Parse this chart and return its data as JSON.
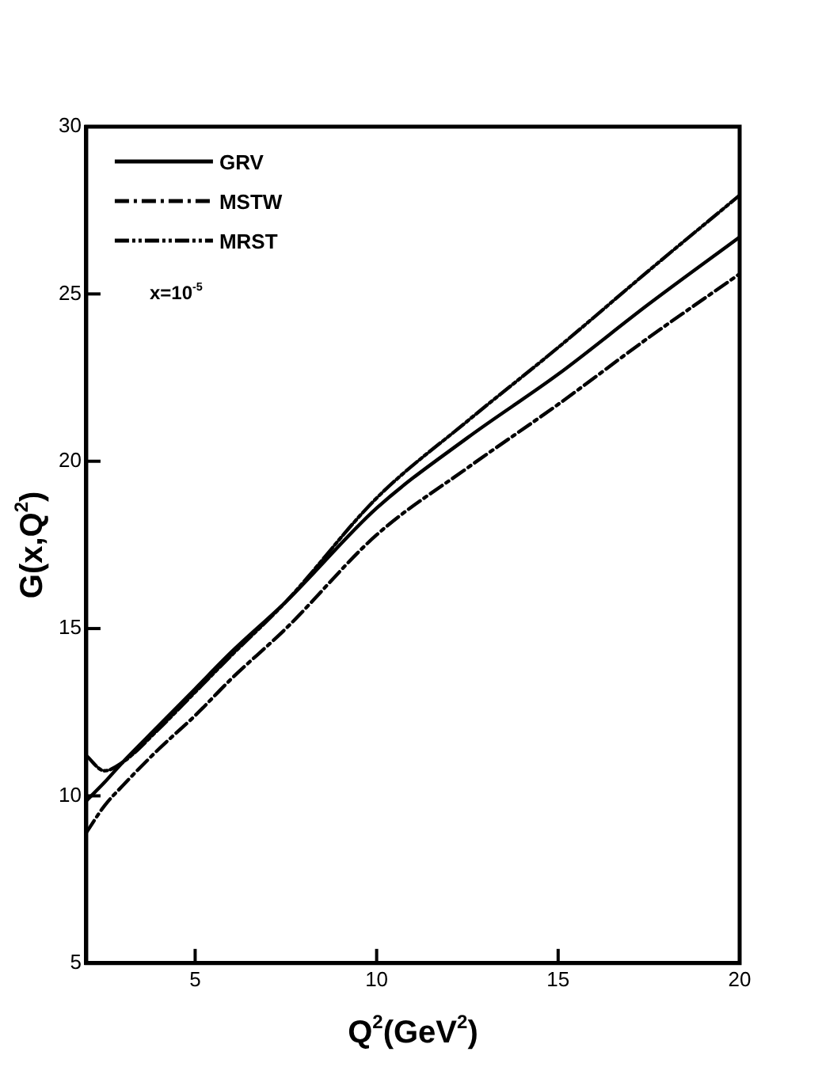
{
  "chart_data": {
    "type": "line",
    "xlabel": "Q$^{2}$(GeV$^{2}$)",
    "ylabel": "G(x,Q$^{2}$)",
    "annotations": [
      "x=10$^{-5}$"
    ],
    "xlim": [
      2,
      20
    ],
    "xticks": [
      5,
      10,
      15,
      20
    ],
    "ylim": [
      5,
      30
    ],
    "yticks": [
      5,
      10,
      15,
      20,
      25,
      30
    ],
    "grid": false,
    "legend": "top left",
    "marker": "none",
    "x": [
      2,
      2.5,
      3,
      4,
      5,
      6,
      7.5,
      10,
      12.5,
      15,
      17.5,
      20
    ],
    "series": [
      {
        "name": "GRV",
        "color": "#000000",
        "line_style": "solid",
        "values": [
          9.85,
          10.4,
          11.0,
          12.1,
          13.2,
          14.3,
          15.8,
          18.6,
          20.7,
          22.6,
          24.7,
          26.7
        ]
      },
      {
        "name": "MSTW",
        "color": "#000000",
        "line_style": "dashed",
        "values": [
          8.9,
          9.7,
          10.3,
          11.4,
          12.4,
          13.5,
          15.0,
          17.8,
          19.8,
          21.7,
          23.7,
          25.6
        ]
      },
      {
        "name": "MRST",
        "color": "#000000",
        "line_style": "dotted",
        "values": [
          11.2,
          10.75,
          11.0,
          12.0,
          13.1,
          14.2,
          15.8,
          18.9,
          21.2,
          23.4,
          25.7,
          27.95
        ]
      }
    ]
  }
}
